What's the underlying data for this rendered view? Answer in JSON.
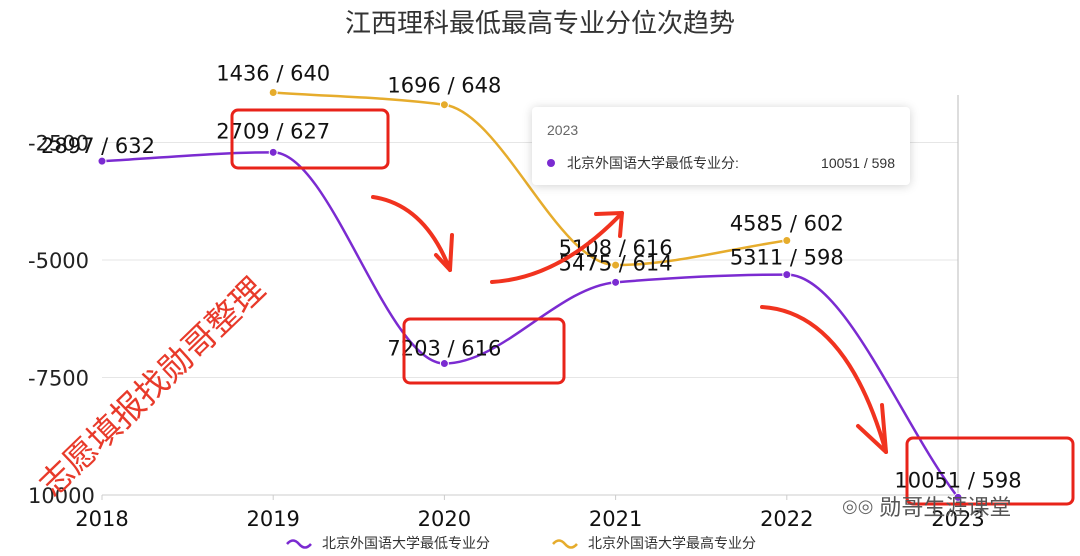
{
  "colors": {
    "min_series": "#7b2bd1",
    "max_series": "#e6ac2c",
    "highlight_box": "#e8231a",
    "arrow": "#f1331f",
    "grid": "#e6e6e6"
  },
  "chart_data": {
    "type": "line",
    "title": "江西理科最低最高专业分位次趋势",
    "x": [
      "2018",
      "2019",
      "2020",
      "2021",
      "2022",
      "2023"
    ],
    "y_axis": {
      "inverted": true,
      "ylim": [
        0,
        10000
      ],
      "ticks": [
        "-2500",
        "-5000",
        "-7500",
        "10000"
      ]
    },
    "series": [
      {
        "name": "北京外国语大学最低专业分",
        "color": "#7b2bd1",
        "values": [
          2897,
          2709,
          7203,
          5475,
          5311,
          10051
        ],
        "labels": [
          "2897 / 632",
          "2709 / 627",
          "7203 / 616",
          "5475 / 614",
          "5311 / 598",
          "10051 / 598"
        ]
      },
      {
        "name": "北京外国语大学最高专业分",
        "color": "#e6ac2c",
        "values": [
          null,
          1436,
          1696,
          5108,
          4585,
          null
        ],
        "labels": [
          null,
          "1436 / 640",
          "1696 / 648",
          "5108 / 616",
          "4585 / 602",
          null
        ]
      }
    ],
    "legend": "bottom"
  },
  "tooltip": {
    "year": "2023",
    "series_name": "北京外国语大学最低专业分:",
    "value": "10051 / 598"
  },
  "watermark": "志愿填报找勋哥整理",
  "brand": {
    "icon": "wechat-icon",
    "text": "勋哥生涯课堂"
  }
}
